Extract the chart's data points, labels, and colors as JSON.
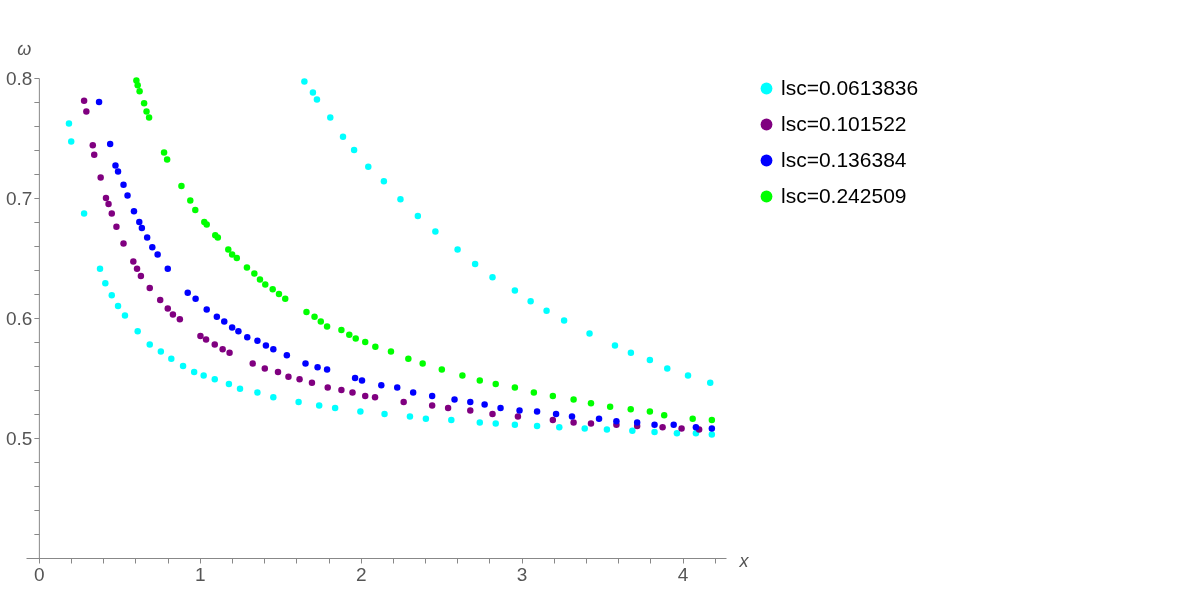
{
  "chart_data": {
    "type": "scatter",
    "xlabel": "x",
    "ylabel": "ω",
    "xlim": [
      -0.08,
      4.27
    ],
    "ylim": [
      0.4,
      0.8
    ],
    "xticks": [
      0,
      {
        "value": 0.2,
        "label": null
      },
      {
        "value": 0.4,
        "label": null
      },
      {
        "value": 0.6,
        "label": null
      },
      {
        "value": 0.8,
        "label": null
      },
      1,
      {
        "value": 1.2,
        "label": null
      },
      {
        "value": 1.4,
        "label": null
      },
      {
        "value": 1.6,
        "label": null
      },
      {
        "value": 1.8,
        "label": null
      },
      2,
      {
        "value": 2.2,
        "label": null
      },
      {
        "value": 2.4,
        "label": null
      },
      {
        "value": 2.6,
        "label": null
      },
      {
        "value": 2.8,
        "label": null
      },
      3,
      {
        "value": 3.2,
        "label": null
      },
      {
        "value": 3.4,
        "label": null
      },
      {
        "value": 3.6,
        "label": null
      },
      {
        "value": 3.8,
        "label": null
      },
      4,
      {
        "value": 4.2,
        "label": null
      }
    ],
    "yticks": [
      {
        "value": 0.42,
        "label": null
      },
      {
        "value": 0.44,
        "label": null
      },
      {
        "value": 0.46,
        "label": null
      },
      {
        "value": 0.48,
        "label": null
      },
      0.5,
      {
        "value": 0.52,
        "label": null
      },
      {
        "value": 0.54,
        "label": null
      },
      {
        "value": 0.56,
        "label": null
      },
      {
        "value": 0.58,
        "label": null
      },
      0.6,
      {
        "value": 0.62,
        "label": null
      },
      {
        "value": 0.64,
        "label": null
      },
      {
        "value": 0.66,
        "label": null
      },
      {
        "value": 0.68,
        "label": null
      },
      0.7,
      {
        "value": 0.72,
        "label": null
      },
      {
        "value": 0.74,
        "label": null
      },
      {
        "value": 0.76,
        "label": null
      },
      {
        "value": 0.78,
        "label": null
      },
      0.8
    ],
    "grid": false,
    "legend": "right",
    "marker": "circle",
    "series": [
      {
        "name": "lsc=0.0613836",
        "color": "#00ffff",
        "x": [
          0.187,
          0.201,
          0.281,
          0.38,
          0.413,
          0.453,
          0.492,
          0.535,
          0.614,
          0.689,
          0.758,
          0.823,
          0.896,
          0.965,
          1.024,
          1.093,
          1.181,
          1.25,
          1.358,
          1.457,
          1.614,
          1.742,
          1.841,
          1.998,
          2.148,
          2.306,
          2.405,
          2.563,
          2.74,
          2.839,
          2.958,
          3.096,
          3.234,
          3.392,
          3.53,
          3.688,
          3.826,
          3.965,
          4.083,
          4.182,
          1.65,
          1.703,
          1.728,
          1.811,
          1.89,
          1.959,
          2.047,
          2.144,
          2.247,
          2.355,
          2.464,
          2.602,
          2.711,
          2.819,
          2.958,
          3.056,
          3.155,
          3.264,
          3.422,
          3.58,
          3.679,
          3.797,
          3.905,
          4.034,
          4.172
        ],
        "values": [
          0.762,
          0.747,
          0.687,
          0.641,
          0.629,
          0.619,
          0.61,
          0.602,
          0.589,
          0.578,
          0.572,
          0.566,
          0.56,
          0.555,
          0.552,
          0.549,
          0.545,
          0.541,
          0.538,
          0.534,
          0.53,
          0.527,
          0.525,
          0.522,
          0.52,
          0.518,
          0.516,
          0.515,
          0.513,
          0.512,
          0.511,
          0.51,
          0.509,
          0.508,
          0.507,
          0.506,
          0.505,
          0.504,
          0.504,
          0.503,
          0.797,
          0.788,
          0.782,
          0.767,
          0.751,
          0.74,
          0.726,
          0.714,
          0.699,
          0.685,
          0.672,
          0.657,
          0.645,
          0.634,
          0.623,
          0.614,
          0.606,
          0.598,
          0.587,
          0.577,
          0.571,
          0.565,
          0.558,
          0.552,
          0.546
        ]
      },
      {
        "name": "lsc=0.101522",
        "color": "#800080",
        "x": [
          0.281,
          0.295,
          0.335,
          0.344,
          0.384,
          0.417,
          0.433,
          0.453,
          0.482,
          0.526,
          0.587,
          0.61,
          0.634,
          0.689,
          0.754,
          0.801,
          0.833,
          0.876,
          1.004,
          1.039,
          1.093,
          1.142,
          1.185,
          1.329,
          1.404,
          1.486,
          1.551,
          1.62,
          1.697,
          1.795,
          1.88,
          1.949,
          2.028,
          2.089,
          2.267,
          2.444,
          2.543,
          2.681,
          2.819,
          2.977,
          3.194,
          3.323,
          3.431,
          3.589,
          3.718,
          3.876,
          3.994,
          4.103
        ],
        "values": [
          0.781,
          0.772,
          0.744,
          0.736,
          0.717,
          0.7,
          0.695,
          0.687,
          0.676,
          0.662,
          0.647,
          0.641,
          0.635,
          0.625,
          0.615,
          0.608,
          0.603,
          0.599,
          0.585,
          0.582,
          0.578,
          0.574,
          0.571,
          0.562,
          0.558,
          0.555,
          0.551,
          0.549,
          0.546,
          0.542,
          0.54,
          0.538,
          0.535,
          0.534,
          0.53,
          0.527,
          0.525,
          0.523,
          0.52,
          0.518,
          0.515,
          0.513,
          0.512,
          0.511,
          0.51,
          0.509,
          0.508,
          0.507
        ]
      },
      {
        "name": "lsc=0.136384",
        "color": "#0000ff",
        "x": [
          0.374,
          0.443,
          0.476,
          0.492,
          0.526,
          0.551,
          0.591,
          0.624,
          0.64,
          0.673,
          0.705,
          0.738,
          0.801,
          0.925,
          0.974,
          1.043,
          1.106,
          1.152,
          1.201,
          1.24,
          1.295,
          1.358,
          1.411,
          1.457,
          1.541,
          1.657,
          1.732,
          1.791,
          1.965,
          2.008,
          2.128,
          2.227,
          2.326,
          2.444,
          2.583,
          2.681,
          2.77,
          2.869,
          2.987,
          3.096,
          3.214,
          3.313,
          3.481,
          3.589,
          3.718,
          3.826,
          3.945,
          4.083,
          4.182
        ],
        "values": [
          0.78,
          0.745,
          0.727,
          0.722,
          0.711,
          0.702,
          0.689,
          0.68,
          0.675,
          0.667,
          0.659,
          0.653,
          0.641,
          0.621,
          0.616,
          0.607,
          0.601,
          0.597,
          0.592,
          0.589,
          0.584,
          0.581,
          0.577,
          0.574,
          0.569,
          0.562,
          0.559,
          0.557,
          0.55,
          0.548,
          0.544,
          0.542,
          0.538,
          0.535,
          0.532,
          0.53,
          0.528,
          0.525,
          0.523,
          0.522,
          0.52,
          0.518,
          0.516,
          0.514,
          0.513,
          0.511,
          0.511,
          0.509,
          0.508
        ]
      },
      {
        "name": "lsc=0.242509",
        "color": "#00ff00",
        "x": [
          0.606,
          0.614,
          0.626,
          0.654,
          0.669,
          0.685,
          0.778,
          0.797,
          0.886,
          0.941,
          0.972,
          1.028,
          1.043,
          1.096,
          1.112,
          1.177,
          1.201,
          1.23,
          1.293,
          1.339,
          1.374,
          1.407,
          1.453,
          1.492,
          1.531,
          1.663,
          1.713,
          1.752,
          1.791,
          1.88,
          1.929,
          1.969,
          2.028,
          2.091,
          2.188,
          2.296,
          2.385,
          2.504,
          2.632,
          2.74,
          2.839,
          2.958,
          3.076,
          3.194,
          3.323,
          3.431,
          3.55,
          3.678,
          3.797,
          3.886,
          4.063,
          4.182
        ],
        "values": [
          0.798,
          0.794,
          0.789,
          0.779,
          0.772,
          0.767,
          0.738,
          0.732,
          0.71,
          0.698,
          0.69,
          0.68,
          0.678,
          0.669,
          0.667,
          0.657,
          0.653,
          0.65,
          0.642,
          0.637,
          0.632,
          0.628,
          0.624,
          0.62,
          0.616,
          0.605,
          0.601,
          0.597,
          0.593,
          0.59,
          0.586,
          0.583,
          0.58,
          0.576,
          0.572,
          0.566,
          0.562,
          0.557,
          0.552,
          0.548,
          0.545,
          0.542,
          0.538,
          0.535,
          0.532,
          0.529,
          0.526,
          0.524,
          0.522,
          0.519,
          0.516,
          0.515
        ]
      }
    ]
  }
}
